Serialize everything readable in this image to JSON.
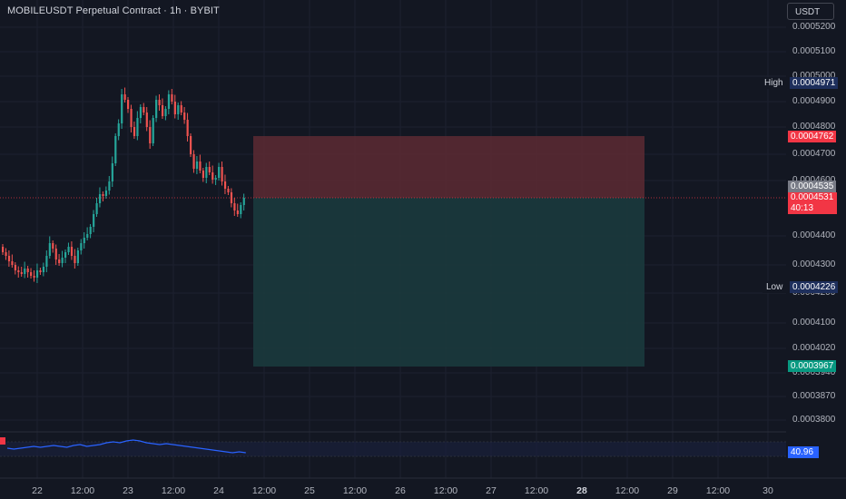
{
  "header": {
    "title": "MOBILEUSDT Perpetual Contract · 1h · BYBIT"
  },
  "currency_button": "USDT",
  "price_axis": {
    "ticks": [
      "0.0005200",
      "0.0005100",
      "0.0005000",
      "0.0004900",
      "0.0004800",
      "0.0004700",
      "0.0004600",
      "0.0004400",
      "0.0004300",
      "0.0004200",
      "0.0004100",
      "0.0004020",
      "0.0003940",
      "0.0003870",
      "0.0003800"
    ]
  },
  "time_axis": {
    "ticks": [
      "22",
      "12:00",
      "23",
      "12:00",
      "24",
      "12:00",
      "25",
      "12:00",
      "26",
      "12:00",
      "27",
      "12:00",
      "28",
      "12:00",
      "29",
      "12:00",
      "30"
    ],
    "bold_tick": "28"
  },
  "price_tags": {
    "high_label": "High",
    "high_value": "0.0004971",
    "stop_value": "0.0004762",
    "gray_value": "0.0004535",
    "current_value": "0.0004531",
    "countdown": "40:13",
    "low_label": "Low",
    "low_value": "0.0004226",
    "target_value": "0.0003967"
  },
  "indicator": {
    "value": "40.96"
  },
  "colors": {
    "background": "#131722",
    "up": "#26a69a",
    "down": "#ef5350",
    "stop_zone": "#5d2a33",
    "target_zone": "#1b3a3d",
    "indicator_line": "#2962ff",
    "label_blue": "#1e2f5c",
    "target_green": "#089981"
  }
}
